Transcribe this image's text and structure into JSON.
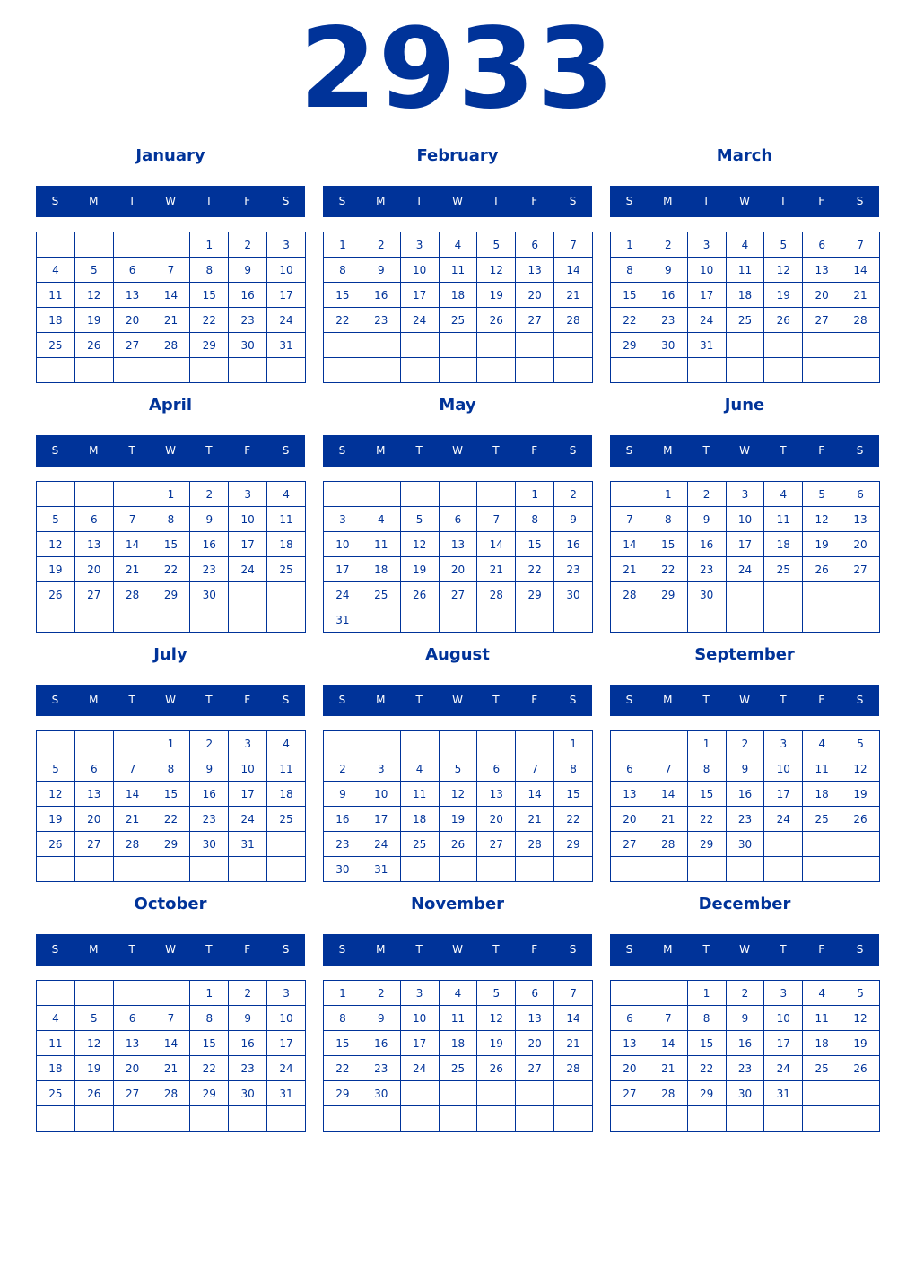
{
  "year": "2933",
  "colors": {
    "primary": "#003399",
    "header_text": "#ffffff"
  },
  "weekday_labels": [
    "S",
    "M",
    "T",
    "W",
    "T",
    "F",
    "S"
  ],
  "months": [
    {
      "name": "January",
      "start_weekday": 4,
      "days": 31
    },
    {
      "name": "February",
      "start_weekday": 0,
      "days": 28
    },
    {
      "name": "March",
      "start_weekday": 0,
      "days": 31
    },
    {
      "name": "April",
      "start_weekday": 3,
      "days": 30
    },
    {
      "name": "May",
      "start_weekday": 5,
      "days": 31
    },
    {
      "name": "June",
      "start_weekday": 1,
      "days": 30
    },
    {
      "name": "July",
      "start_weekday": 3,
      "days": 31
    },
    {
      "name": "August",
      "start_weekday": 6,
      "days": 31
    },
    {
      "name": "September",
      "start_weekday": 2,
      "days": 30
    },
    {
      "name": "October",
      "start_weekday": 4,
      "days": 31
    },
    {
      "name": "November",
      "start_weekday": 0,
      "days": 30
    },
    {
      "name": "December",
      "start_weekday": 2,
      "days": 31
    }
  ]
}
